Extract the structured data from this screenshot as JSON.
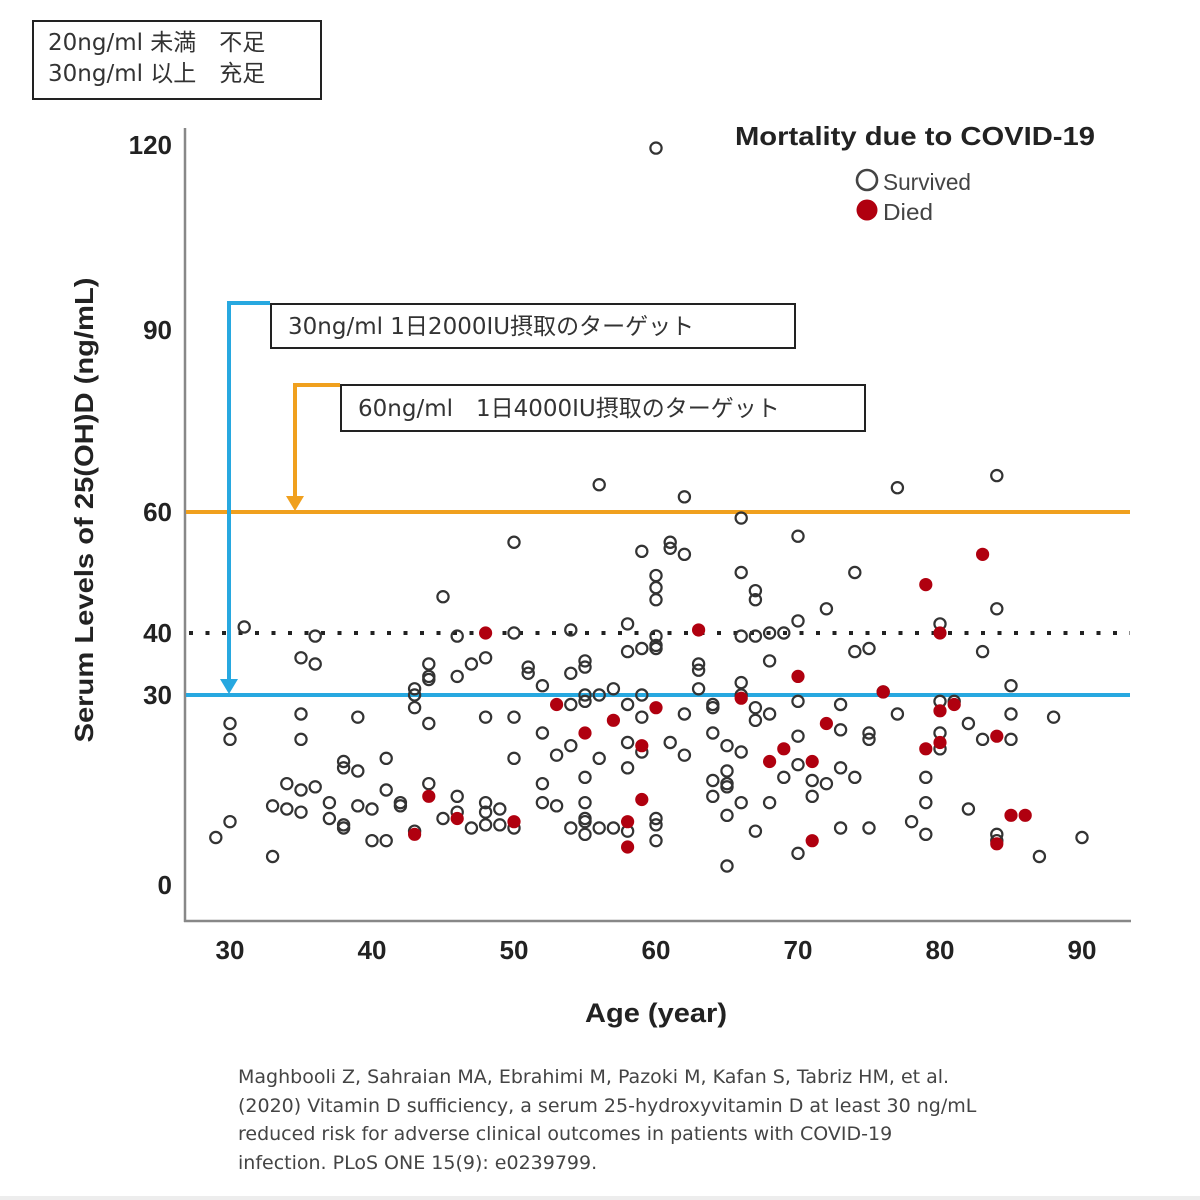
{
  "notes": {
    "status_box": {
      "line1": "20ng/ml 未満　不足",
      "line2": "30ng/ml 以上　充足"
    },
    "target_30": "30ng/ml 1日2000IU摂取のターゲット",
    "target_60": "60ng/ml　1日4000IU摂取のターゲット"
  },
  "citation": [
    "Maghbooli Z, Sahraian MA, Ebrahimi M, Pazoki M, Kafan S, Tabriz HM, et al.",
    "(2020) Vitamin D sufficiency, a serum 25-hydroxyvitamin D at least 30 ng/mL",
    "reduced risk for adverse clinical outcomes in patients with COVID-19",
    "infection. PLoS ONE 15(9): e0239799."
  ],
  "colors": {
    "survived_stroke": "#333333",
    "died_fill": "#b0000f",
    "line_60": "#f0a01e",
    "line_30": "#27a8e0",
    "line_40": "#222222",
    "axis": "#888888"
  },
  "chart_data": {
    "type": "scatter",
    "title": "",
    "legend_title": "Mortality due to COVID-19",
    "legend": [
      "Survived",
      "Died"
    ],
    "legend_position": "top-right",
    "xlabel": "Age (year)",
    "ylabel": "Serum Levels of 25(OH)D (ng/mL)",
    "xlim": [
      27,
      94
    ],
    "ylim": [
      -6,
      126
    ],
    "xticks": [
      30,
      40,
      50,
      60,
      70,
      80,
      90
    ],
    "yticks": [
      0,
      30,
      40,
      60,
      90,
      120
    ],
    "grid": false,
    "reference_lines": [
      {
        "name": "target-60",
        "y": 60,
        "style": "solid",
        "color": "#f0a01e"
      },
      {
        "name": "threshold-40",
        "y": 40,
        "style": "dotted",
        "color": "#222222"
      },
      {
        "name": "target-30",
        "y": 30,
        "style": "solid",
        "color": "#27a8e0"
      }
    ],
    "series": [
      {
        "name": "Survived",
        "points": [
          [
            29,
            7.5
          ],
          [
            30,
            25.5
          ],
          [
            30,
            23
          ],
          [
            30,
            10
          ],
          [
            31,
            41
          ],
          [
            33,
            4.5
          ],
          [
            33,
            12.5
          ],
          [
            34,
            16
          ],
          [
            34,
            12
          ],
          [
            35,
            15
          ],
          [
            35,
            11.5
          ],
          [
            35,
            27
          ],
          [
            35,
            23
          ],
          [
            35,
            36
          ],
          [
            36,
            39.5
          ],
          [
            36,
            35
          ],
          [
            36,
            15.5
          ],
          [
            37,
            13
          ],
          [
            37,
            10.5
          ],
          [
            38,
            19.5
          ],
          [
            38,
            18.5
          ],
          [
            38,
            9
          ],
          [
            38,
            9.5
          ],
          [
            39,
            26.5
          ],
          [
            39,
            12.5
          ],
          [
            39,
            18
          ],
          [
            40,
            12
          ],
          [
            40,
            7
          ],
          [
            41,
            15
          ],
          [
            41,
            20
          ],
          [
            41,
            7
          ],
          [
            42,
            13
          ],
          [
            42,
            12.5
          ],
          [
            43,
            31
          ],
          [
            43,
            30
          ],
          [
            43,
            28
          ],
          [
            43,
            8.5
          ],
          [
            44,
            35
          ],
          [
            44,
            33
          ],
          [
            44,
            32.5
          ],
          [
            44,
            25.5
          ],
          [
            44,
            16
          ],
          [
            45,
            46
          ],
          [
            45,
            10.5
          ],
          [
            46,
            39.5
          ],
          [
            46,
            33
          ],
          [
            46,
            14
          ],
          [
            46,
            11.5
          ],
          [
            47,
            35
          ],
          [
            47,
            9
          ],
          [
            48,
            36
          ],
          [
            48,
            26.5
          ],
          [
            48,
            13
          ],
          [
            48,
            11.5
          ],
          [
            48,
            9.5
          ],
          [
            49,
            12
          ],
          [
            49,
            9.5
          ],
          [
            50,
            40
          ],
          [
            50,
            26.5
          ],
          [
            50,
            20
          ],
          [
            50,
            9
          ],
          [
            50,
            55
          ],
          [
            51,
            34.5
          ],
          [
            51,
            33.5
          ],
          [
            52,
            31.5
          ],
          [
            52,
            24
          ],
          [
            52,
            16
          ],
          [
            52,
            13
          ],
          [
            53,
            20.5
          ],
          [
            53,
            12.5
          ],
          [
            54,
            40.5
          ],
          [
            54,
            33.5
          ],
          [
            54,
            28.5
          ],
          [
            54,
            22
          ],
          [
            54,
            9
          ],
          [
            55,
            35.5
          ],
          [
            55,
            34.5
          ],
          [
            55,
            30
          ],
          [
            55,
            29
          ],
          [
            55,
            17
          ],
          [
            55,
            13
          ],
          [
            55,
            10.5
          ],
          [
            55,
            10
          ],
          [
            55,
            8
          ],
          [
            56,
            30
          ],
          [
            56,
            20
          ],
          [
            56,
            9
          ],
          [
            56,
            64.5
          ],
          [
            57,
            9
          ],
          [
            57,
            31
          ],
          [
            58,
            41.5
          ],
          [
            58,
            37
          ],
          [
            58,
            28.5
          ],
          [
            58,
            22.5
          ],
          [
            58,
            18.5
          ],
          [
            58,
            8.5
          ],
          [
            59,
            53.5
          ],
          [
            59,
            37.5
          ],
          [
            59,
            30
          ],
          [
            59,
            26.5
          ],
          [
            59,
            21
          ],
          [
            60,
            37.5
          ],
          [
            60,
            38
          ],
          [
            60,
            39.5
          ],
          [
            60,
            47.5
          ],
          [
            60,
            45.5
          ],
          [
            60,
            49.5
          ],
          [
            60,
            10.5
          ],
          [
            60,
            9.5
          ],
          [
            60,
            7
          ],
          [
            60,
            119.5
          ],
          [
            61,
            55
          ],
          [
            61,
            54
          ],
          [
            61,
            22.5
          ],
          [
            62,
            62.5
          ],
          [
            62,
            53
          ],
          [
            62,
            27
          ],
          [
            62,
            20.5
          ],
          [
            63,
            35
          ],
          [
            63,
            34
          ],
          [
            63,
            31
          ],
          [
            64,
            28.5
          ],
          [
            64,
            28
          ],
          [
            64,
            24
          ],
          [
            64,
            16.5
          ],
          [
            64,
            14
          ],
          [
            65,
            22
          ],
          [
            65,
            18
          ],
          [
            65,
            16
          ],
          [
            65,
            15.5
          ],
          [
            65,
            11
          ],
          [
            65,
            3
          ],
          [
            66,
            59
          ],
          [
            66,
            50
          ],
          [
            66,
            39.5
          ],
          [
            66,
            32
          ],
          [
            66,
            30
          ],
          [
            66,
            21
          ],
          [
            66,
            13
          ],
          [
            67,
            47
          ],
          [
            67,
            45.5
          ],
          [
            67,
            39.5
          ],
          [
            67,
            26
          ],
          [
            67,
            28
          ],
          [
            67,
            8.5
          ],
          [
            68,
            40
          ],
          [
            68,
            35.5
          ],
          [
            68,
            27
          ],
          [
            68,
            13
          ],
          [
            69,
            40
          ],
          [
            69,
            17
          ],
          [
            70,
            56
          ],
          [
            70,
            42
          ],
          [
            70,
            29
          ],
          [
            70,
            23.5
          ],
          [
            70,
            19
          ],
          [
            70,
            5
          ],
          [
            71,
            16.5
          ],
          [
            71,
            14
          ],
          [
            72,
            44
          ],
          [
            72,
            16
          ],
          [
            73,
            28.5
          ],
          [
            73,
            24.5
          ],
          [
            73,
            18.5
          ],
          [
            73,
            9
          ],
          [
            74,
            50
          ],
          [
            74,
            17
          ],
          [
            74,
            37
          ],
          [
            75,
            37.5
          ],
          [
            75,
            24
          ],
          [
            75,
            23
          ],
          [
            75,
            9
          ],
          [
            76,
            30.5
          ],
          [
            77,
            27
          ],
          [
            77,
            64
          ],
          [
            78,
            10
          ],
          [
            79,
            17
          ],
          [
            79,
            13
          ],
          [
            79,
            8
          ],
          [
            80,
            41.5
          ],
          [
            80,
            29
          ],
          [
            80,
            24
          ],
          [
            80,
            21.5
          ],
          [
            81,
            29
          ],
          [
            82,
            25.5
          ],
          [
            82,
            12
          ],
          [
            83,
            37
          ],
          [
            83,
            23
          ],
          [
            84,
            66
          ],
          [
            84,
            44
          ],
          [
            84,
            8
          ],
          [
            84,
            7
          ],
          [
            85,
            31.5
          ],
          [
            85,
            27
          ],
          [
            85,
            23
          ],
          [
            87,
            4.5
          ],
          [
            88,
            26.5
          ],
          [
            90,
            7.5
          ]
        ]
      },
      {
        "name": "Died",
        "points": [
          [
            43,
            8
          ],
          [
            44,
            14
          ],
          [
            46,
            10.5
          ],
          [
            48,
            40
          ],
          [
            50,
            10
          ],
          [
            53,
            28.5
          ],
          [
            55,
            24
          ],
          [
            57,
            26
          ],
          [
            58,
            10
          ],
          [
            58,
            6
          ],
          [
            59,
            22
          ],
          [
            59,
            13.5
          ],
          [
            60,
            28
          ],
          [
            63,
            40.5
          ],
          [
            66,
            29.5
          ],
          [
            68,
            19.5
          ],
          [
            69,
            21.5
          ],
          [
            70,
            33
          ],
          [
            71,
            19.5
          ],
          [
            71,
            7
          ],
          [
            72,
            25.5
          ],
          [
            76,
            30.5
          ],
          [
            79,
            48
          ],
          [
            79,
            21.5
          ],
          [
            80,
            40
          ],
          [
            80,
            27.5
          ],
          [
            80,
            22.5
          ],
          [
            81,
            28.5
          ],
          [
            83,
            53
          ],
          [
            84,
            23.5
          ],
          [
            84,
            6.5
          ],
          [
            85,
            11
          ],
          [
            86,
            11
          ]
        ]
      }
    ]
  }
}
